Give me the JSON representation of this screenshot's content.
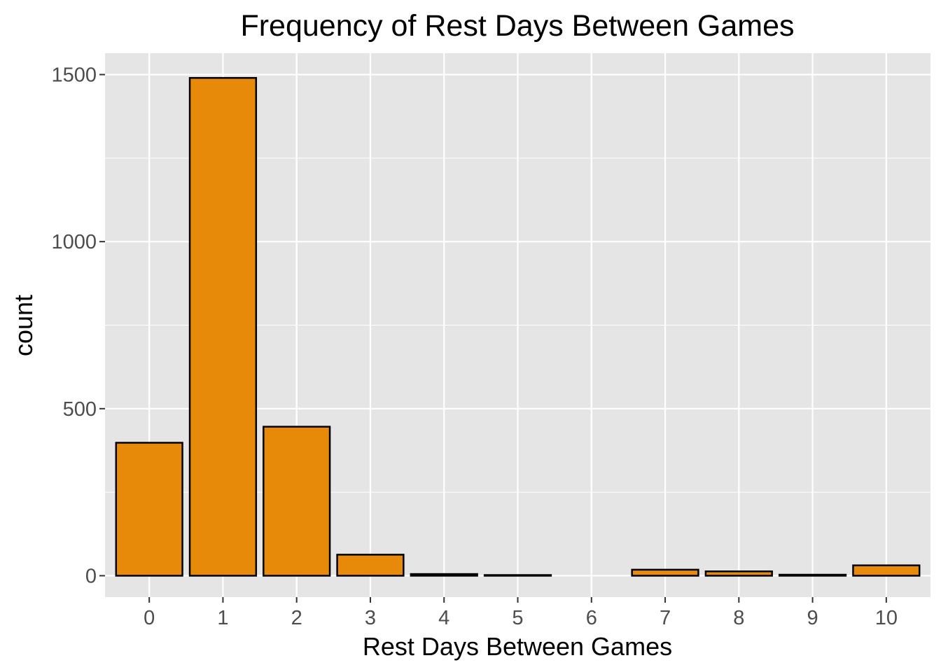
{
  "chart_data": {
    "type": "bar",
    "title": "Frequency of Rest Days Between Games",
    "xlabel": "Rest Days Between Games",
    "ylabel": "count",
    "categories": [
      "0",
      "1",
      "2",
      "3",
      "4",
      "5",
      "6",
      "7",
      "8",
      "9",
      "10"
    ],
    "values": [
      398,
      1490,
      446,
      63,
      5,
      2,
      0,
      18,
      13,
      3,
      31
    ],
    "ylim": [
      -64,
      1564
    ],
    "yticks": [
      0,
      500,
      1000,
      1500
    ],
    "grid": true,
    "legend": "none",
    "colors": {
      "bar_fill": "#E88A09",
      "bar_stroke": "#000000",
      "panel_bg": "#E5E5E5",
      "grid": "#FFFFFF",
      "tick_text": "#4D4D4D"
    }
  }
}
